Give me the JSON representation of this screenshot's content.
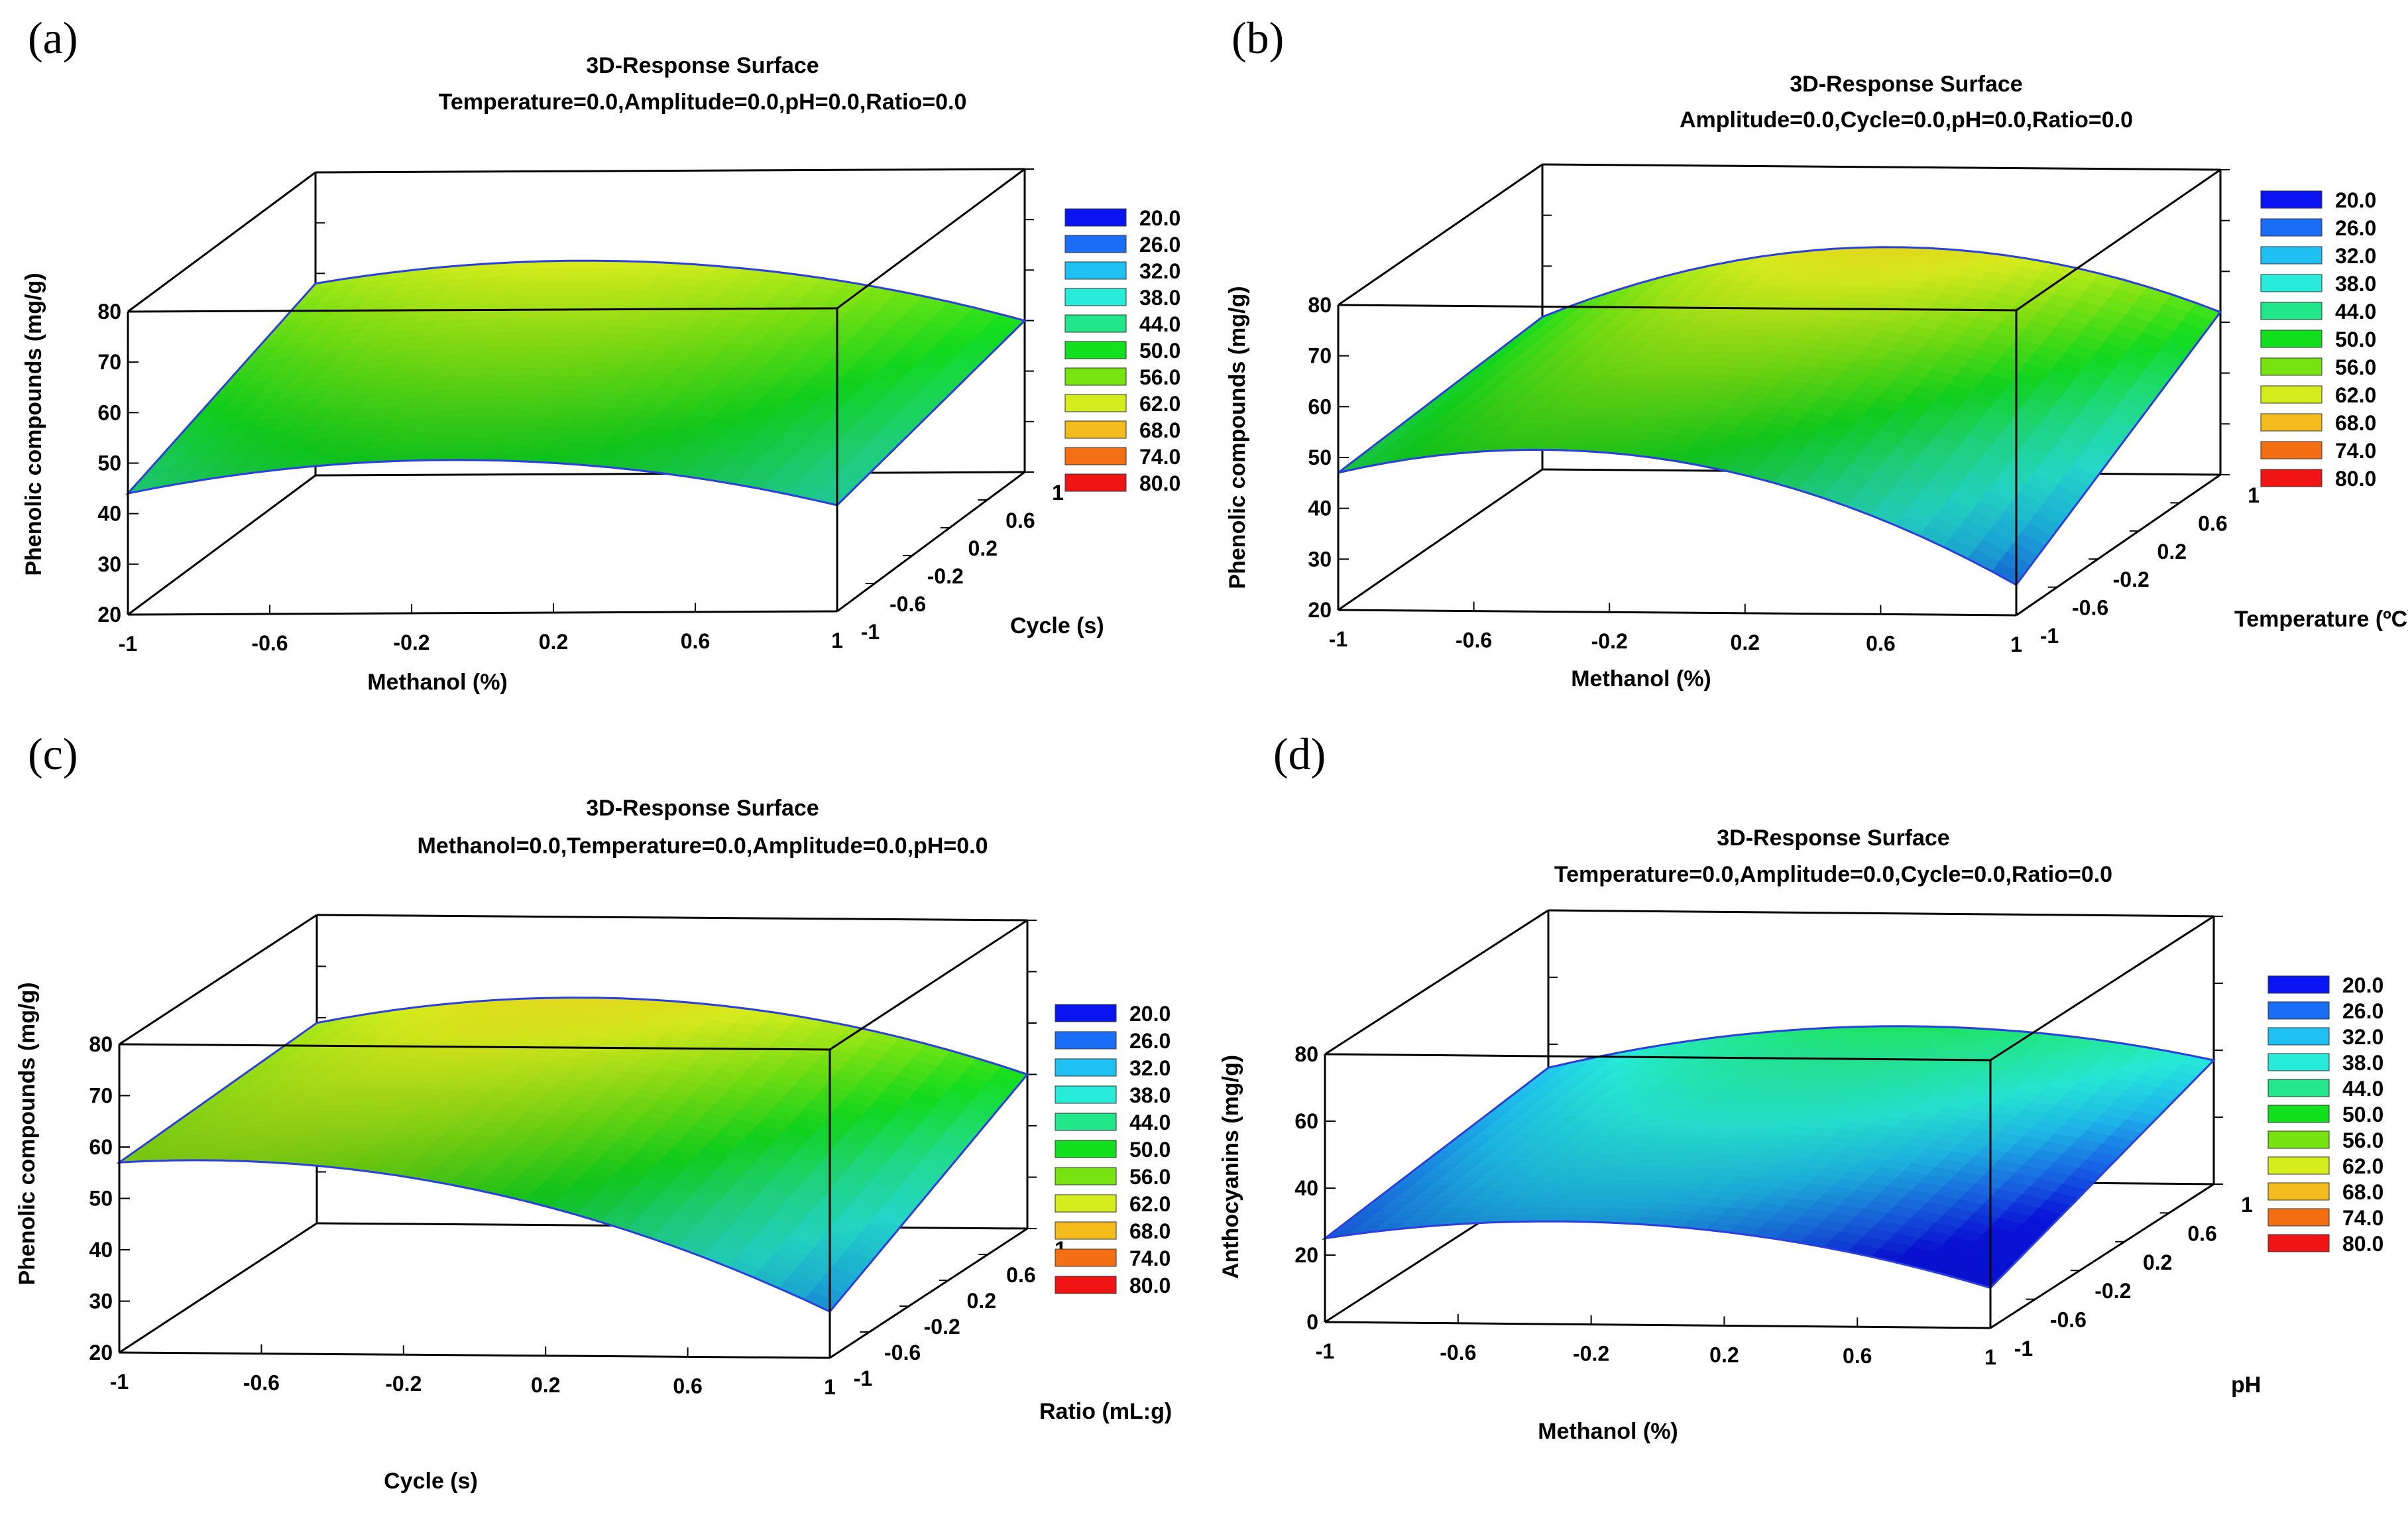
{
  "chart_data": [
    {
      "type": "surface3d",
      "panel_label": "(a)",
      "title": "3D-Response Surface",
      "subtitle": "Temperature=0.0,Amplitude=0.0,pH=0.0,Ratio=0.0",
      "xlabel": "Methanol (%)",
      "ylabel": "Cycle (s)",
      "zlabel": "Phenolic compounds (mg/g)",
      "x_ticks": [
        "-1",
        "-0.6",
        "-0.2",
        "0.2",
        "0.6",
        "1"
      ],
      "y_ticks": [
        "-1",
        "-0.6",
        "-0.2",
        "0.2",
        "0.6",
        "1"
      ],
      "z_ticks": [
        "20",
        "30",
        "40",
        "50",
        "60",
        "70",
        "80"
      ],
      "xlim": [
        -1,
        1
      ],
      "ylim": [
        -1,
        1
      ],
      "zlim": [
        20,
        80
      ],
      "corner_values": {
        "x-1_y-1": 44,
        "x1_y-1": 41,
        "x-1_y1": 58,
        "x1_y1": 50
      },
      "surface_peak": 56,
      "legend": {
        "levels": [
          "20.0",
          "26.0",
          "32.0",
          "38.0",
          "44.0",
          "50.0",
          "56.0",
          "62.0",
          "68.0",
          "74.0",
          "80.0"
        ],
        "colors": [
          "#0a14f0",
          "#1a6ef5",
          "#1fc0f2",
          "#27ecd9",
          "#22e68a",
          "#12e01e",
          "#77e412",
          "#d6ec1c",
          "#f4bb1c",
          "#f46f14",
          "#f01414"
        ]
      }
    },
    {
      "type": "surface3d",
      "panel_label": "(b)",
      "title": "3D-Response Surface",
      "subtitle": "Amplitude=0.0,Cycle=0.0,pH=0.0,Ratio=0.0",
      "xlabel": "Methanol (%)",
      "ylabel": "Temperature (ºC)",
      "zlabel": "Phenolic compounds (mg/g)",
      "x_ticks": [
        "-1",
        "-0.6",
        "-0.2",
        "0.2",
        "0.6",
        "1"
      ],
      "y_ticks": [
        "-1",
        "-0.6",
        "-0.2",
        "0.2",
        "0.6",
        "1"
      ],
      "z_ticks": [
        "20",
        "30",
        "40",
        "50",
        "60",
        "70",
        "80"
      ],
      "xlim": [
        -1,
        1
      ],
      "ylim": [
        -1,
        1
      ],
      "zlim": [
        20,
        80
      ],
      "corner_values": {
        "x-1_y-1": 47,
        "x1_y-1": 26,
        "x-1_y1": 50,
        "x1_y1": 52
      },
      "surface_peak": 57,
      "legend": {
        "levels": [
          "20.0",
          "26.0",
          "32.0",
          "38.0",
          "44.0",
          "50.0",
          "56.0",
          "62.0",
          "68.0",
          "74.0",
          "80.0"
        ],
        "colors": [
          "#0a14f0",
          "#1a6ef5",
          "#1fc0f2",
          "#27ecd9",
          "#22e68a",
          "#12e01e",
          "#77e412",
          "#d6ec1c",
          "#f4bb1c",
          "#f46f14",
          "#f01414"
        ]
      }
    },
    {
      "type": "surface3d",
      "panel_label": "(c)",
      "title": "3D-Response Surface",
      "subtitle": "Methanol=0.0,Temperature=0.0,Amplitude=0.0,pH=0.0",
      "xlabel": "Cycle (s)",
      "ylabel": "Ratio (mL:g)",
      "zlabel": "Phenolic compounds (mg/g)",
      "x_ticks": [
        "-1",
        "-0.6",
        "-0.2",
        "0.2",
        "0.6",
        "1"
      ],
      "y_ticks": [
        "-1",
        "-0.6",
        "-0.2",
        "0.2",
        "0.6",
        "1"
      ],
      "z_ticks": [
        "20",
        "30",
        "40",
        "50",
        "60",
        "70",
        "80"
      ],
      "xlim": [
        -1,
        1
      ],
      "ylim": [
        -1,
        1
      ],
      "zlim": [
        20,
        80
      ],
      "corner_values": {
        "x-1_y-1": 57,
        "x1_y-1": 29,
        "x-1_y1": 59,
        "x1_y1": 50
      },
      "surface_peak": 58,
      "legend": {
        "levels": [
          "20.0",
          "26.0",
          "32.0",
          "38.0",
          "44.0",
          "50.0",
          "56.0",
          "62.0",
          "68.0",
          "74.0",
          "80.0"
        ],
        "colors": [
          "#0a14f0",
          "#1a6ef5",
          "#1fc0f2",
          "#27ecd9",
          "#22e68a",
          "#12e01e",
          "#77e412",
          "#d6ec1c",
          "#f4bb1c",
          "#f46f14",
          "#f01414"
        ]
      }
    },
    {
      "type": "surface3d",
      "panel_label": "(d)",
      "title": "3D-Response Surface",
      "subtitle": "Temperature=0.0,Amplitude=0.0,Cycle=0.0,Ratio=0.0",
      "xlabel": "Methanol (%)",
      "ylabel": "pH",
      "zlabel": "Anthocyanins (mg/g)",
      "x_ticks": [
        "-1",
        "-0.6",
        "-0.2",
        "0.2",
        "0.6",
        "1"
      ],
      "y_ticks": [
        "-1",
        "-0.6",
        "-0.2",
        "0.2",
        "0.6",
        "1"
      ],
      "z_ticks": [
        "0",
        "20",
        "40",
        "60",
        "80"
      ],
      "xlim": [
        -1,
        1
      ],
      "ylim": [
        -1,
        1
      ],
      "zlim": [
        0,
        80
      ],
      "corner_values": {
        "x-1_y-1": 25,
        "x1_y-1": 12,
        "x-1_y1": 33,
        "x1_y1": 37
      },
      "surface_peak": 38,
      "legend": {
        "levels": [
          "20.0",
          "26.0",
          "32.0",
          "38.0",
          "44.0",
          "50.0",
          "56.0",
          "62.0",
          "68.0",
          "74.0",
          "80.0"
        ],
        "colors": [
          "#0a14f0",
          "#1a6ef5",
          "#1fc0f2",
          "#27ecd9",
          "#22e68a",
          "#12e01e",
          "#77e412",
          "#d6ec1c",
          "#f4bb1c",
          "#f46f14",
          "#f01414"
        ]
      }
    }
  ]
}
